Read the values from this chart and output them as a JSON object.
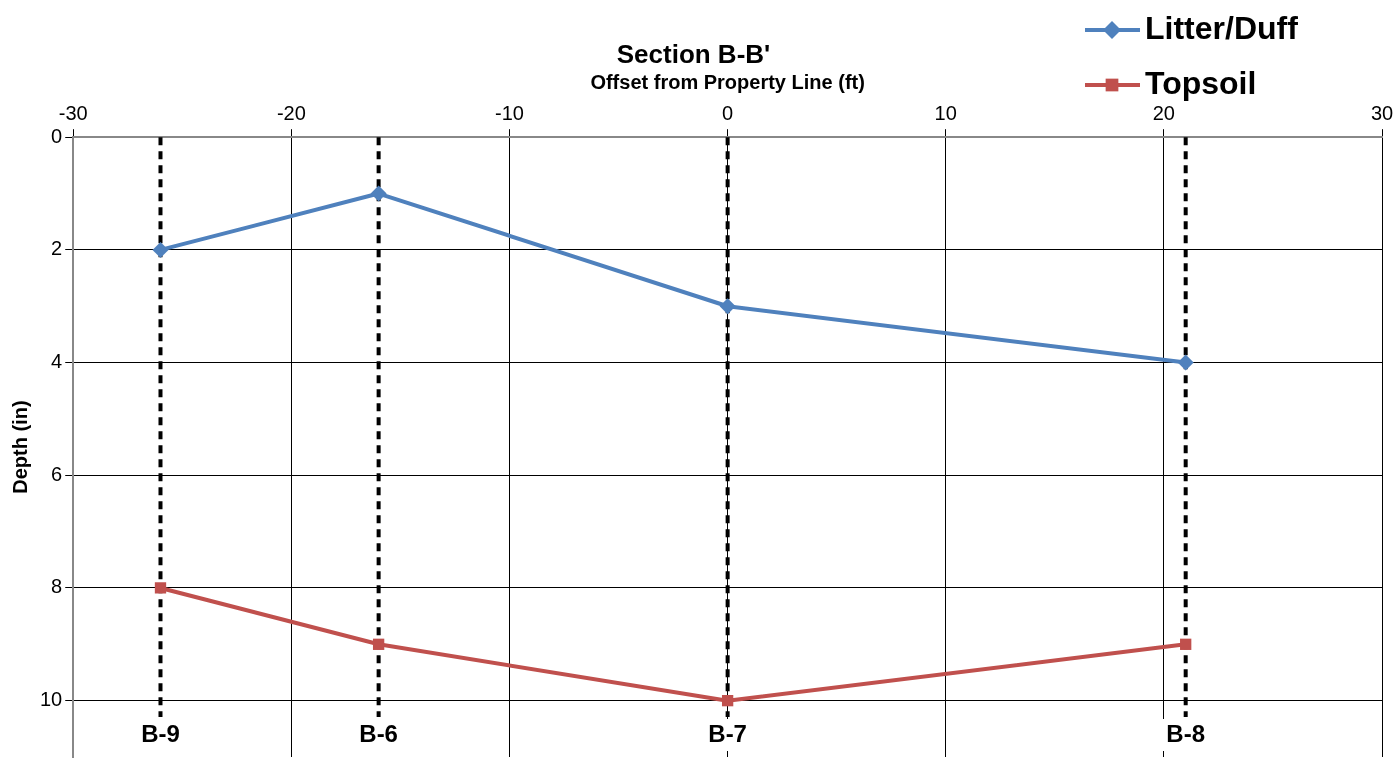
{
  "chart_data": {
    "type": "line",
    "title": "Section B-B'",
    "xlabel": "Offset from Property Line (ft)",
    "ylabel": "Depth (in)",
    "xlim": [
      -30,
      30
    ],
    "xticks": [
      -30,
      -20,
      -10,
      0,
      10,
      20,
      30
    ],
    "ylim": [
      11,
      0
    ],
    "yticks": [
      0,
      2,
      4,
      6,
      8,
      10
    ],
    "grid": true,
    "legend": "top right",
    "line_style": "solid",
    "series": [
      {
        "name": "Litter/Duff",
        "color": "#4f81bd",
        "marker": "diamond",
        "x": [
          -26,
          -16,
          0,
          21
        ],
        "values": [
          2,
          1,
          3,
          4
        ]
      },
      {
        "name": "Topsoil",
        "color": "#c0504d",
        "marker": "square",
        "x": [
          -26,
          -16,
          0,
          21
        ],
        "values": [
          8,
          9,
          10,
          9
        ]
      }
    ],
    "ref_lines": [
      {
        "axis": "x",
        "value": -26,
        "label": "B-9",
        "color": "#000000",
        "line_style": "dashed"
      },
      {
        "axis": "x",
        "value": -16,
        "label": "B-6",
        "color": "#000000",
        "line_style": "dashed"
      },
      {
        "axis": "x",
        "value": 0,
        "label": "B-7",
        "color": "#000000",
        "line_style": "dashed"
      },
      {
        "axis": "x",
        "value": 21,
        "label": "B-8",
        "color": "#000000",
        "line_style": "dashed"
      }
    ]
  }
}
